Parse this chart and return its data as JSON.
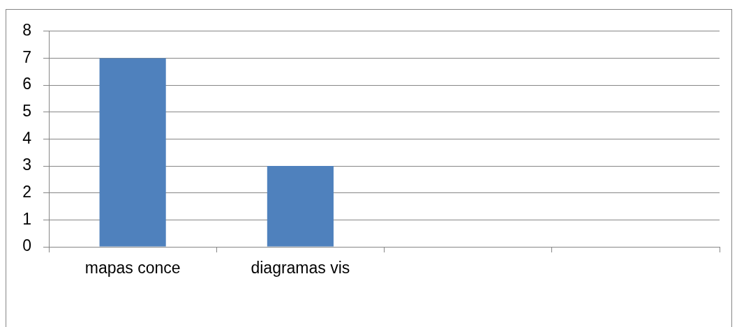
{
  "chart_data": {
    "type": "bar",
    "categories": [
      "mapas conce",
      "diagramas vis",
      null,
      null
    ],
    "values": [
      7,
      3,
      null,
      null
    ],
    "color": "#4f81bd",
    "ylim": [
      0,
      8
    ],
    "yticks": [
      0,
      1,
      2,
      3,
      4,
      5,
      6,
      7,
      8
    ],
    "grid": "y"
  }
}
